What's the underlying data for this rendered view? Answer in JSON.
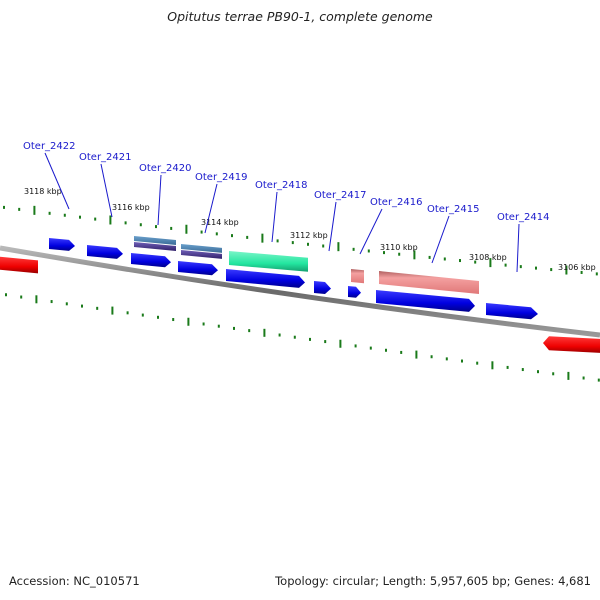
{
  "title": "Opitutus terrae PB90-1, complete genome",
  "footer": {
    "accession": "Accession: NC_010571",
    "summary": "Topology: circular; Length: 5,957,605 bp; Genes: 4,681"
  },
  "colors": {
    "forward_cds": "#0000e6",
    "reverse_cds": "#ee0000",
    "trna": "#23e6a0",
    "rrna": "#f08a8a",
    "other_feature": "#4a86b8",
    "label": "#1a1acc",
    "tick": "#1a7a1a",
    "backbone": "#7a7a7a"
  },
  "kbp_labels": [
    "3118 kbp",
    "3116 kbp",
    "3114 kbp",
    "3112 kbp",
    "3110 kbp",
    "3108 kbp",
    "3106 kbp"
  ],
  "gene_labels": [
    "Oter_2422",
    "Oter_2421",
    "Oter_2420",
    "Oter_2419",
    "Oter_2418",
    "Oter_2417",
    "Oter_2416",
    "Oter_2415",
    "Oter_2414"
  ]
}
